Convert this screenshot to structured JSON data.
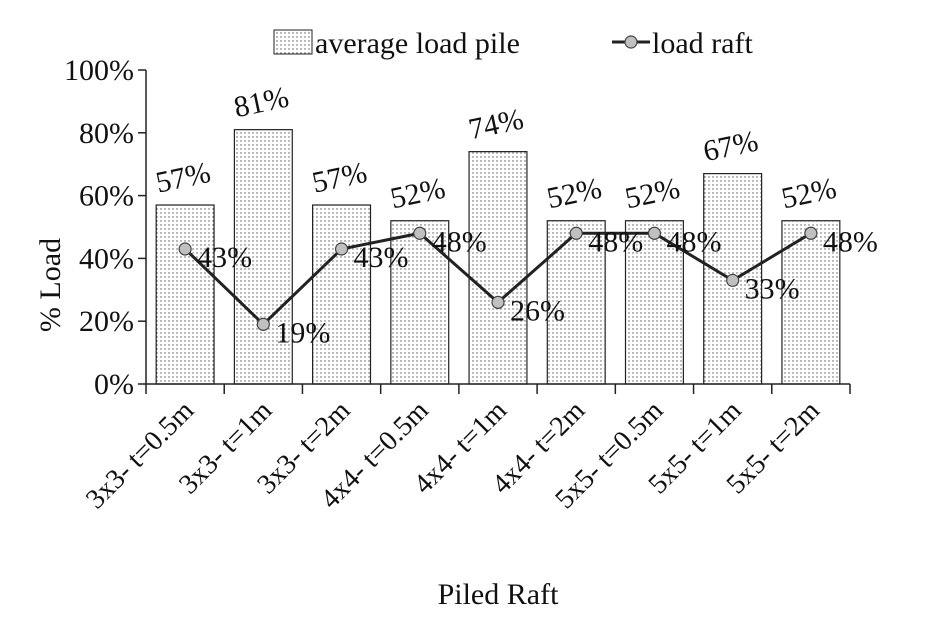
{
  "chart_data": {
    "type": "bar",
    "xlabel": "Piled Raft",
    "ylabel": "% Load",
    "ylim": [
      0,
      100
    ],
    "yticks": [
      0,
      20,
      40,
      60,
      80,
      100
    ],
    "ytick_labels": [
      "0%",
      "20%",
      "40%",
      "60%",
      "80%",
      "100%"
    ],
    "categories": [
      "3x3- t=0.5m",
      "3x3- t=1m",
      "3x3- t=2m",
      "4x4- t=0.5m",
      "4x4- t=1m",
      "4x4- t=2m",
      "5x5- t=0.5m",
      "5x5- t=1m",
      "5x5- t=2m"
    ],
    "legend_position": "top",
    "grid": false,
    "series": [
      {
        "name": "average load pile",
        "type": "bar",
        "values": [
          57,
          81,
          57,
          52,
          74,
          52,
          52,
          67,
          52
        ],
        "labels": [
          "57%",
          "81%",
          "57%",
          "52%",
          "74%",
          "52%",
          "52%",
          "67%",
          "52%"
        ],
        "fill": "dotted"
      },
      {
        "name": "load raft",
        "type": "line",
        "values": [
          43,
          19,
          43,
          48,
          26,
          48,
          48,
          33,
          48
        ],
        "labels": [
          "43%",
          "19%",
          "43%",
          "48%",
          "26%",
          "48%",
          "48%",
          "33%",
          "48%"
        ],
        "color": "#222222",
        "marker_color": "#c0c0c0"
      }
    ]
  }
}
